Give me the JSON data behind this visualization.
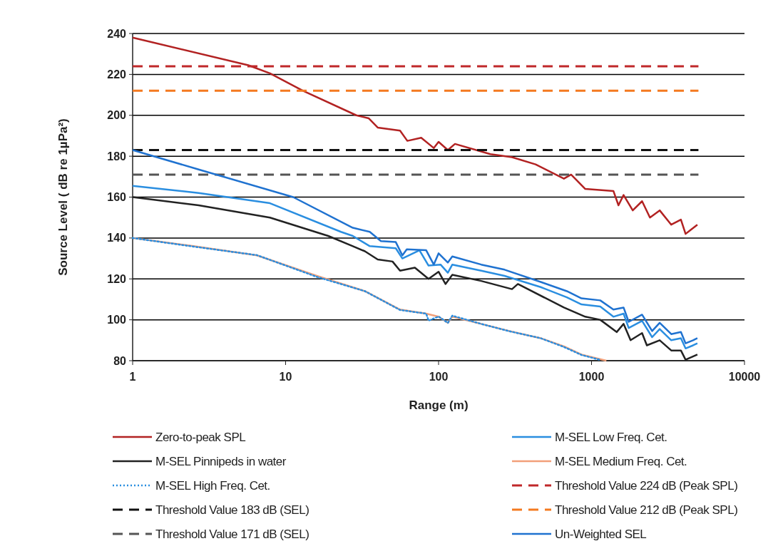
{
  "chart_data": {
    "type": "line",
    "xlabel": "Range (m)",
    "ylabel": "Source Level ( dB re 1µPa²)",
    "log": "x",
    "xlim": [
      1,
      10000
    ],
    "xticks": [
      1,
      10,
      100,
      1000,
      10000
    ],
    "ylim": [
      80,
      240
    ],
    "yticks": [
      80,
      100,
      120,
      140,
      160,
      180,
      200,
      220,
      240
    ],
    "grid": "y",
    "legend": "bottom",
    "marker": "none",
    "series": [
      {
        "name": "Zero-to-peak SPL",
        "color": "#b22222",
        "line_style": "solid",
        "x": [
          1,
          5.7,
          7.9,
          13,
          29,
          35,
          40,
          56,
          62.5,
          77,
          93,
          100,
          115,
          128,
          218,
          302,
          431,
          660,
          735,
          910,
          1390,
          1500,
          1620,
          1860,
          2140,
          2410,
          2790,
          3320,
          3840,
          4120,
          4450,
          4920
        ],
        "values": [
          238,
          224.5,
          220.5,
          212,
          200,
          198.5,
          194,
          192.5,
          187.5,
          189,
          184,
          187,
          183,
          186,
          181,
          179.5,
          176,
          169,
          171,
          164,
          163,
          156,
          161,
          153.5,
          158,
          150,
          153.5,
          146.5,
          149,
          142,
          144,
          146.5
        ]
      },
      {
        "name": "M-SEL Low Freq. Cet.",
        "color": "#2a8ee0",
        "line_style": "solid",
        "x": [
          1,
          2.7,
          7.9,
          23,
          27.5,
          35.5,
          52.5,
          58,
          75,
          86,
          103,
          115,
          123,
          190,
          270,
          465,
          690,
          860,
          1140,
          1390,
          1620,
          1750,
          2140,
          2490,
          2790,
          3320,
          3840,
          4120,
          4610,
          4920
        ],
        "values": [
          165.5,
          162,
          157,
          143,
          141,
          136,
          135,
          130,
          134,
          126.5,
          127,
          123,
          127,
          124,
          121.5,
          116,
          111,
          107.5,
          106.5,
          101.5,
          103,
          96,
          99.5,
          91.5,
          95.5,
          90,
          91,
          86,
          87.5,
          88.5
        ]
      },
      {
        "name": "M-SEL Pinnipeds in water",
        "color": "#222222",
        "line_style": "solid",
        "x": [
          1,
          2.7,
          7.9,
          19,
          27.5,
          33,
          40,
          50,
          56,
          70,
          86,
          100,
          111,
          123,
          190,
          302,
          330,
          660,
          910,
          1140,
          1460,
          1620,
          1800,
          2140,
          2300,
          2790,
          3320,
          3840,
          4120,
          4920
        ],
        "values": [
          160,
          156,
          150,
          141,
          136,
          133.5,
          129.5,
          128.5,
          124,
          125.5,
          120,
          123.5,
          117.5,
          122,
          119,
          115,
          117.5,
          106,
          101.5,
          100,
          94,
          98,
          90,
          93.5,
          87.5,
          90,
          85,
          85,
          80.5,
          83
        ]
      },
      {
        "name": "M-SEL Medium Freq. Cet.",
        "color": "#f2a07a",
        "line_style": "solid",
        "x": [
          1,
          2.5,
          6.5,
          16,
          33,
          56,
          83,
          100,
          115,
          123,
          190,
          290,
          465,
          660,
          860,
          1250
        ],
        "values": [
          140,
          136,
          131.5,
          121.5,
          114,
          105,
          103,
          101.5,
          98.5,
          101.5,
          98,
          94.5,
          91,
          87,
          83,
          80
        ]
      },
      {
        "name": "M-SEL High Freq. Cet.",
        "color": "#2a8ee0",
        "line_style": "dotted",
        "x": [
          1,
          2.5,
          6.5,
          16,
          33,
          56,
          83,
          86,
          100,
          115,
          123,
          190,
          290,
          465,
          660,
          860,
          1140
        ],
        "values": [
          140,
          135.8,
          131.6,
          121,
          114,
          104.8,
          103,
          99.6,
          101.6,
          98.5,
          102,
          98,
          94.4,
          91,
          86.7,
          82.8,
          80.4
        ]
      },
      {
        "name": "Threshold Value 224 dB (Peak SPL)",
        "color": "#c0282a",
        "line_style": "dashed",
        "x": [
          1,
          5000
        ],
        "values": [
          224,
          224
        ]
      },
      {
        "name": "Threshold Value 183 dB (SEL)",
        "color": "#111111",
        "line_style": "dashed",
        "x": [
          1,
          5000
        ],
        "values": [
          183,
          183
        ]
      },
      {
        "name": "Threshold Value 212 dB (Peak SPL)",
        "color": "#f47a20",
        "line_style": "dashed",
        "x": [
          1,
          5000
        ],
        "values": [
          212,
          212
        ]
      },
      {
        "name": "Threshold Value 171 dB (SEL)",
        "color": "#555555",
        "line_style": "dashed",
        "x": [
          1,
          5000
        ],
        "values": [
          171,
          171
        ]
      },
      {
        "name": "Un-Weighted SEL",
        "color": "#1f72d0",
        "line_style": "solid",
        "x": [
          1,
          2.7,
          11.2,
          27.5,
          35.5,
          42,
          52.5,
          58,
          62,
          83,
          93,
          100,
          115,
          123,
          190,
          270,
          465,
          690,
          860,
          1140,
          1390,
          1620,
          1750,
          2140,
          2490,
          2790,
          3320,
          3840,
          4120,
          4610,
          4920
        ],
        "values": [
          183,
          173.5,
          160,
          145,
          143,
          138.5,
          138,
          131.5,
          134.5,
          134,
          127,
          132.5,
          128,
          131,
          127,
          124.5,
          118.5,
          114,
          110.5,
          109.5,
          105,
          106,
          99,
          102.5,
          94.5,
          98.5,
          93,
          94,
          88.5,
          90,
          91
        ]
      }
    ]
  }
}
